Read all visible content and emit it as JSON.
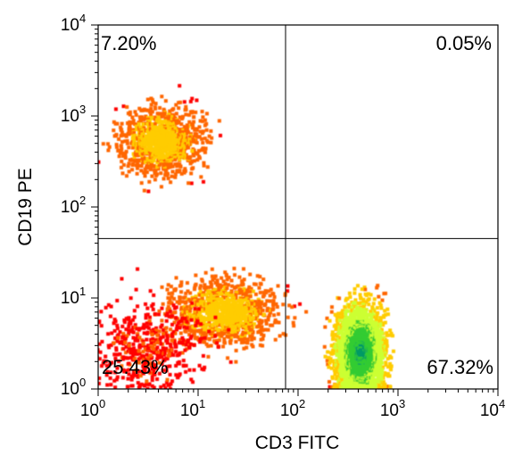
{
  "chart_data": {
    "type": "scatter",
    "subtype": "flow-cytometry-density-dot-plot",
    "x_axis": {
      "label": "CD3 FITC",
      "scale": "log",
      "range": [
        1,
        10000
      ],
      "ticks": [
        {
          "base": "10",
          "exp": "0"
        },
        {
          "base": "10",
          "exp": "1"
        },
        {
          "base": "10",
          "exp": "2"
        },
        {
          "base": "10",
          "exp": "3"
        },
        {
          "base": "10",
          "exp": "4"
        }
      ]
    },
    "y_axis": {
      "label": "CD19 PE",
      "scale": "log",
      "range": [
        1,
        10000
      ],
      "ticks": [
        {
          "base": "10",
          "exp": "0"
        },
        {
          "base": "10",
          "exp": "1"
        },
        {
          "base": "10",
          "exp": "2"
        },
        {
          "base": "10",
          "exp": "3"
        },
        {
          "base": "10",
          "exp": "4"
        }
      ]
    },
    "quadrant_gates": {
      "x": 75,
      "y": 45
    },
    "quadrants": [
      {
        "position": "upper-left",
        "value": "7.20%"
      },
      {
        "position": "upper-right",
        "value": "0.05%"
      },
      {
        "position": "lower-left",
        "value": "25.43%"
      },
      {
        "position": "lower-right",
        "value": "67.32%"
      }
    ],
    "populations": [
      {
        "quadrant": "upper-left",
        "center": [
          4.2,
          530
        ],
        "spread": [
          0.35,
          0.32
        ],
        "density": "medium"
      },
      {
        "quadrant": "lower-left",
        "center": [
          18,
          7
        ],
        "spread": [
          0.45,
          0.3
        ],
        "density": "medium"
      },
      {
        "quadrant": "lower-left",
        "center": [
          3.2,
          2.8
        ],
        "spread": [
          0.4,
          0.4
        ],
        "density": "low"
      },
      {
        "quadrant": "lower-right",
        "center": [
          420,
          2.5
        ],
        "spread": [
          0.2,
          0.45
        ],
        "density": "high"
      }
    ],
    "density_colors": [
      "#ff0000",
      "#ff6600",
      "#ffcc00",
      "#ccff33",
      "#33cc33",
      "#009966",
      "#3366cc",
      "#6600cc"
    ],
    "grid": false,
    "legend": "none"
  }
}
